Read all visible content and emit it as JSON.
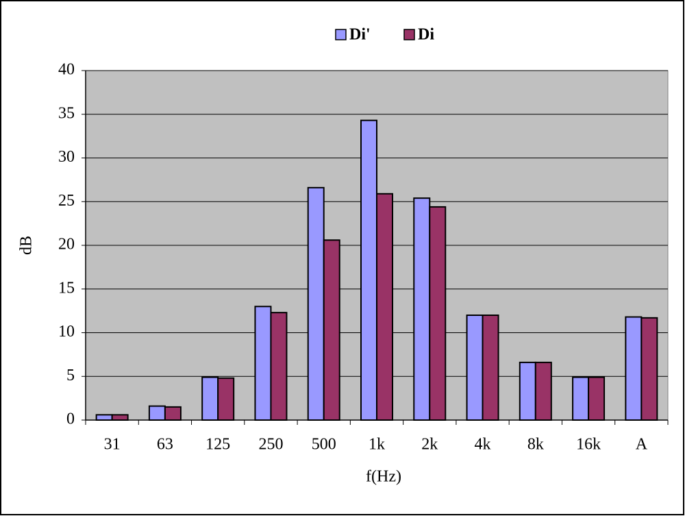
{
  "chart_data": {
    "type": "bar",
    "categories": [
      "31",
      "63",
      "125",
      "250",
      "500",
      "1k",
      "2k",
      "4k",
      "8k",
      "16k",
      "A"
    ],
    "series": [
      {
        "name": "Di'",
        "color": "#9999ff",
        "values": [
          0.6,
          1.6,
          4.9,
          13.0,
          26.6,
          34.3,
          25.4,
          12.0,
          6.6,
          4.9,
          11.8
        ]
      },
      {
        "name": "Di",
        "color": "#993366",
        "values": [
          0.6,
          1.5,
          4.8,
          12.3,
          20.6,
          25.9,
          24.4,
          12.0,
          6.6,
          4.9,
          11.7
        ]
      }
    ],
    "x_label": "f(Hz)",
    "y_label": "dB",
    "ylim": [
      0,
      40
    ],
    "yticks": [
      0,
      5,
      10,
      15,
      20,
      25,
      30,
      35,
      40
    ],
    "grid": true,
    "legend": "top",
    "plot_background": "#c0c0c0"
  }
}
